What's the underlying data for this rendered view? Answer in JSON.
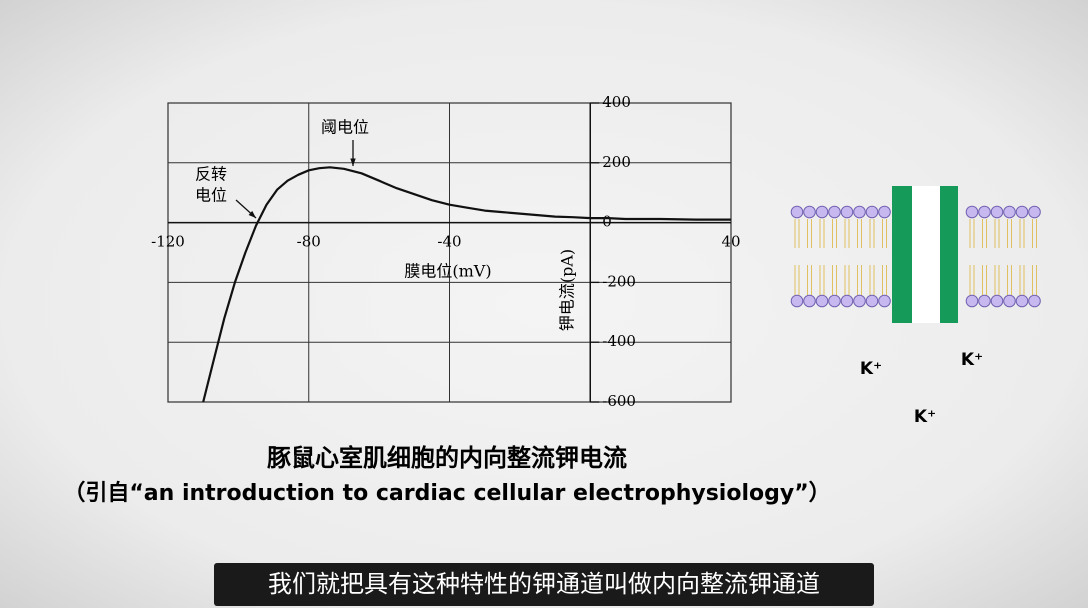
{
  "chart_data": {
    "type": "line",
    "title": "豚鼠心室肌细胞的内向整流钾电流",
    "source": "（引自“an introduction to cardiac cellular electrophysiology”）",
    "x_label": "膜电位(mV)",
    "y_label": "钾电流(pA)",
    "annotations": [
      {
        "lines": [
          "阈电位"
        ]
      },
      {
        "lines": [
          "反转",
          "电位"
        ]
      }
    ],
    "x": [
      -110,
      -107,
      -104,
      -101,
      -98,
      -95,
      -92,
      -89,
      -86,
      -83,
      -80,
      -77,
      -74,
      -70,
      -65,
      -60,
      -55,
      -50,
      -45,
      -40,
      -35,
      -30,
      -25,
      -20,
      -15,
      -10,
      -5,
      0,
      5,
      10,
      20,
      30,
      40
    ],
    "series": [
      {
        "color": "#111111",
        "values": [
          -600,
          -460,
          -320,
          -200,
          -100,
          -10,
          60,
          110,
          140,
          160,
          175,
          182,
          185,
          180,
          165,
          140,
          115,
          95,
          75,
          60,
          50,
          40,
          35,
          30,
          25,
          20,
          18,
          15,
          15,
          12,
          12,
          10,
          10
        ]
      }
    ],
    "xlim": [
      -120,
      40
    ],
    "xticks": [
      -120,
      -80,
      -40,
      40
    ],
    "ylim": [
      -600,
      400
    ],
    "yticks": [
      400,
      200,
      0,
      -200,
      -400,
      -600
    ],
    "grid": true
  },
  "diagram": {
    "ion_labels": [
      "K⁺",
      "K⁺",
      "K⁺"
    ]
  },
  "subtitle": "我们就把具有这种特性的钾通道叫做内向整流钾通道"
}
